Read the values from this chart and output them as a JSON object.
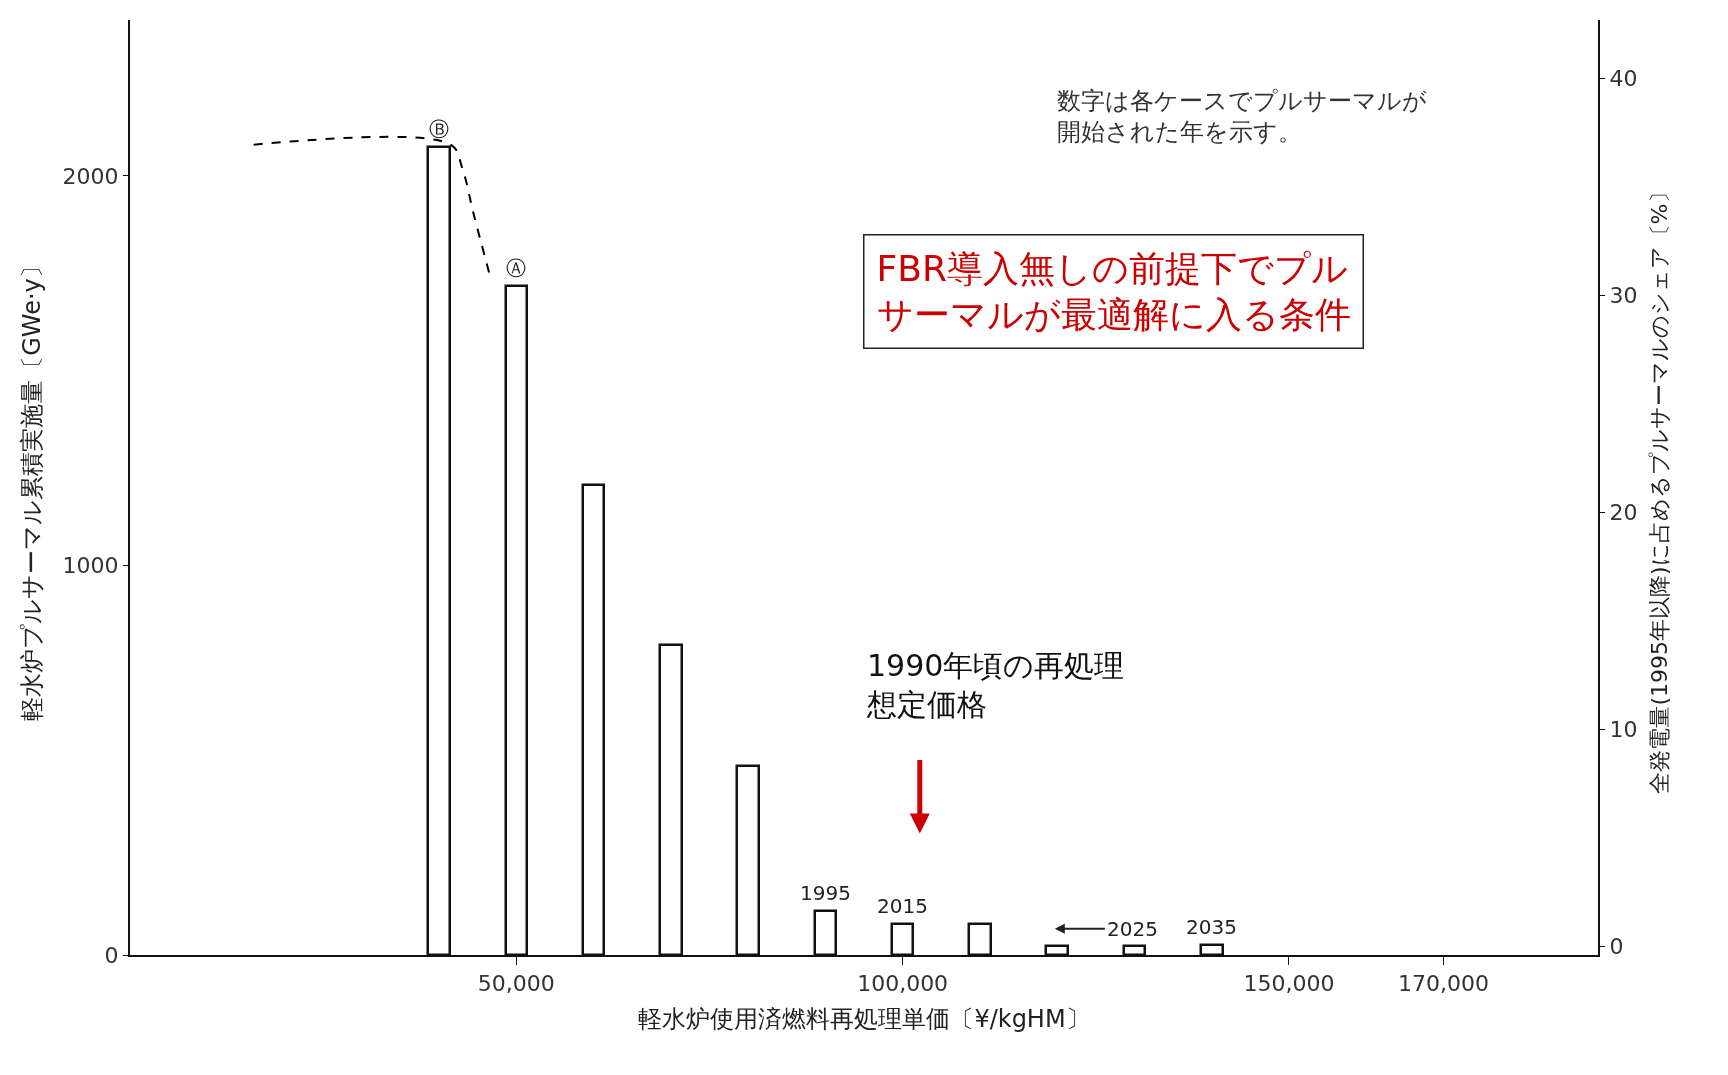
{
  "chart_data": {
    "type": "bar",
    "xlabel": "軽水炉使用済燃料再処理単価〔¥/kgHM〕",
    "ylabel": "軽水炉プルサーマル累積実施量〔GWe·y〕",
    "y2label": "全発電量(1995年以降)に占めるプルサーマルのシェア〔%〕",
    "x": [
      40000,
      50000,
      60000,
      70000,
      80000,
      90000,
      100000,
      110000,
      120000,
      130000,
      140000
    ],
    "series": [
      {
        "color": "#ffffff",
        "values": [
          2075,
          1716,
          1206,
          797,
          485,
          114,
          80,
          80,
          23,
          23,
          25
        ]
      },
      {
        "type": "line",
        "color": "#000000",
        "line_style": "dashed",
        "marker": "none",
        "x": [
          16000,
          41500,
          43000,
          44500,
          46500
        ],
        "values": [
          2080,
          2080,
          2020,
          1900,
          1750
        ]
      }
    ],
    "xlim": [
      0,
      190000
    ],
    "xticks": [
      {
        "value": 50000,
        "label": "50,000"
      },
      {
        "value": 100000,
        "label": "100,000"
      },
      {
        "value": 150000,
        "label": "150,000"
      },
      {
        "value": 170000,
        "label": "170,000"
      }
    ],
    "ylim": [
      0,
      2400
    ],
    "yticks": [
      0,
      1000,
      2000
    ],
    "y2lim": [
      -0.4,
      42.7
    ],
    "y2ticks": [
      0,
      10,
      20,
      30,
      40
    ],
    "annotations": [
      "数字は各ケースでプルサーマルが開始された年を示す。",
      "FBR導入無しの前提下でプルサーマルが最適解に入る条件",
      "1990年頃の再処理想定価格",
      "2025",
      {
        "text": "Ⓑ",
        "x": 40000,
        "y": 2075
      },
      {
        "text": "Ⓐ",
        "x": 50000,
        "y": 1716
      },
      {
        "text": "1995",
        "x": 90000,
        "y": 114
      },
      {
        "text": "2015",
        "x": 100000,
        "y": 80
      },
      {
        "text": "2035",
        "x": 140000,
        "y": 25
      }
    ]
  }
}
